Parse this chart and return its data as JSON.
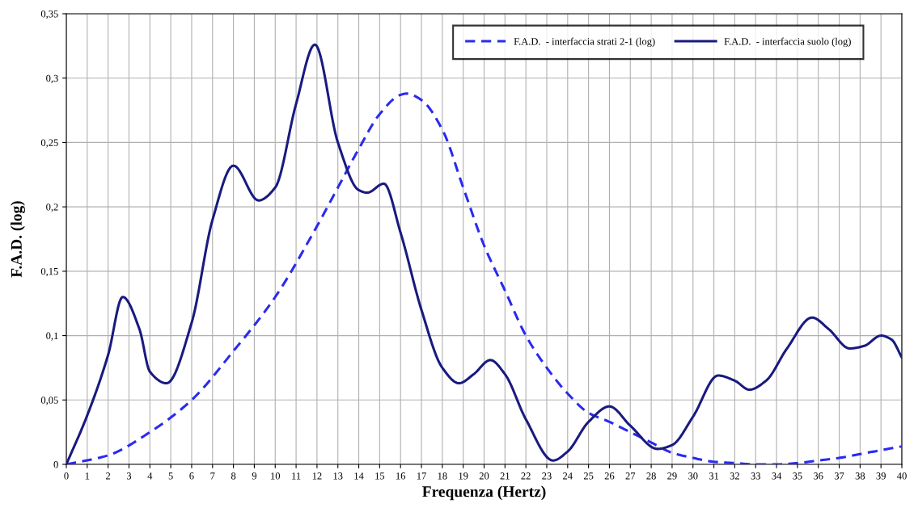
{
  "chart_data": {
    "type": "line",
    "xlabel": "Frequenza (Hertz)",
    "ylabel": "F.A.D. (log)",
    "xlim": [
      0,
      40
    ],
    "ylim": [
      0,
      0.35
    ],
    "xticks": [
      0,
      1,
      2,
      3,
      4,
      5,
      6,
      7,
      8,
      9,
      10,
      11,
      12,
      13,
      14,
      15,
      16,
      17,
      18,
      19,
      20,
      21,
      22,
      23,
      24,
      25,
      26,
      27,
      28,
      29,
      30,
      31,
      32,
      33,
      34,
      35,
      36,
      37,
      38,
      39,
      40
    ],
    "yticks": [
      0,
      {
        "value": 0.05,
        "label": "0,05"
      },
      {
        "value": 0.1,
        "label": "0,1"
      },
      {
        "value": 0.15,
        "label": "0,15"
      },
      {
        "value": 0.2,
        "label": "0,2"
      },
      {
        "value": 0.25,
        "label": "0,25"
      },
      {
        "value": 0.3,
        "label": "0,3"
      },
      {
        "value": 0.35,
        "label": "0,35"
      }
    ],
    "grid": true,
    "legend": "top right",
    "marker": "none",
    "series": [
      {
        "name": "F.A.D.  - interfaccia strati 2-1 (log)",
        "color": "#2a2af0",
        "line_style": "dashed",
        "x": [
          0,
          2,
          4,
          6,
          8,
          10,
          12,
          13,
          14,
          15,
          16,
          16.3,
          17,
          18,
          19,
          20,
          21,
          22,
          23,
          24,
          25,
          26,
          27,
          28,
          29,
          30,
          31,
          32,
          33,
          34,
          35,
          36,
          37,
          38,
          39,
          40
        ],
        "values": [
          0,
          0.007,
          0.025,
          0.05,
          0.088,
          0.13,
          0.185,
          0.215,
          0.245,
          0.272,
          0.287,
          0.288,
          0.283,
          0.26,
          0.215,
          0.17,
          0.135,
          0.1,
          0.075,
          0.055,
          0.04,
          0.033,
          0.025,
          0.017,
          0.009,
          0.005,
          0.002,
          0.001,
          0,
          0,
          0.001,
          0.003,
          0.005,
          0.008,
          0.011,
          0.014
        ]
      },
      {
        "name": "F.A.D.  - interfaccia suolo (log)",
        "color": "#1a1a80",
        "line_style": "solid",
        "x": [
          0,
          1,
          2,
          2.7,
          3.5,
          4,
          4.8,
          6,
          7,
          8,
          9.2,
          10,
          11,
          11.9,
          13,
          14,
          14.4,
          15.2,
          16,
          17,
          18,
          18.8,
          19.5,
          20.3,
          21,
          22,
          23.3,
          24,
          25,
          26,
          27,
          28.3,
          29,
          30,
          31.2,
          32,
          32.7,
          33.5,
          34.5,
          35.7,
          36.5,
          37.5,
          38.2,
          39,
          39.5,
          40
        ],
        "values": [
          0,
          0.038,
          0.085,
          0.13,
          0.105,
          0.072,
          0.063,
          0.11,
          0.19,
          0.232,
          0.205,
          0.215,
          0.28,
          0.326,
          0.25,
          0.213,
          0.211,
          0.218,
          0.18,
          0.12,
          0.075,
          0.063,
          0.07,
          0.081,
          0.07,
          0.035,
          0.003,
          0.01,
          0.033,
          0.045,
          0.03,
          0.012,
          0.015,
          0.037,
          0.069,
          0.065,
          0.058,
          0.065,
          0.09,
          0.114,
          0.105,
          0.09,
          0.092,
          0.1,
          0.097,
          0.083
        ]
      }
    ]
  }
}
